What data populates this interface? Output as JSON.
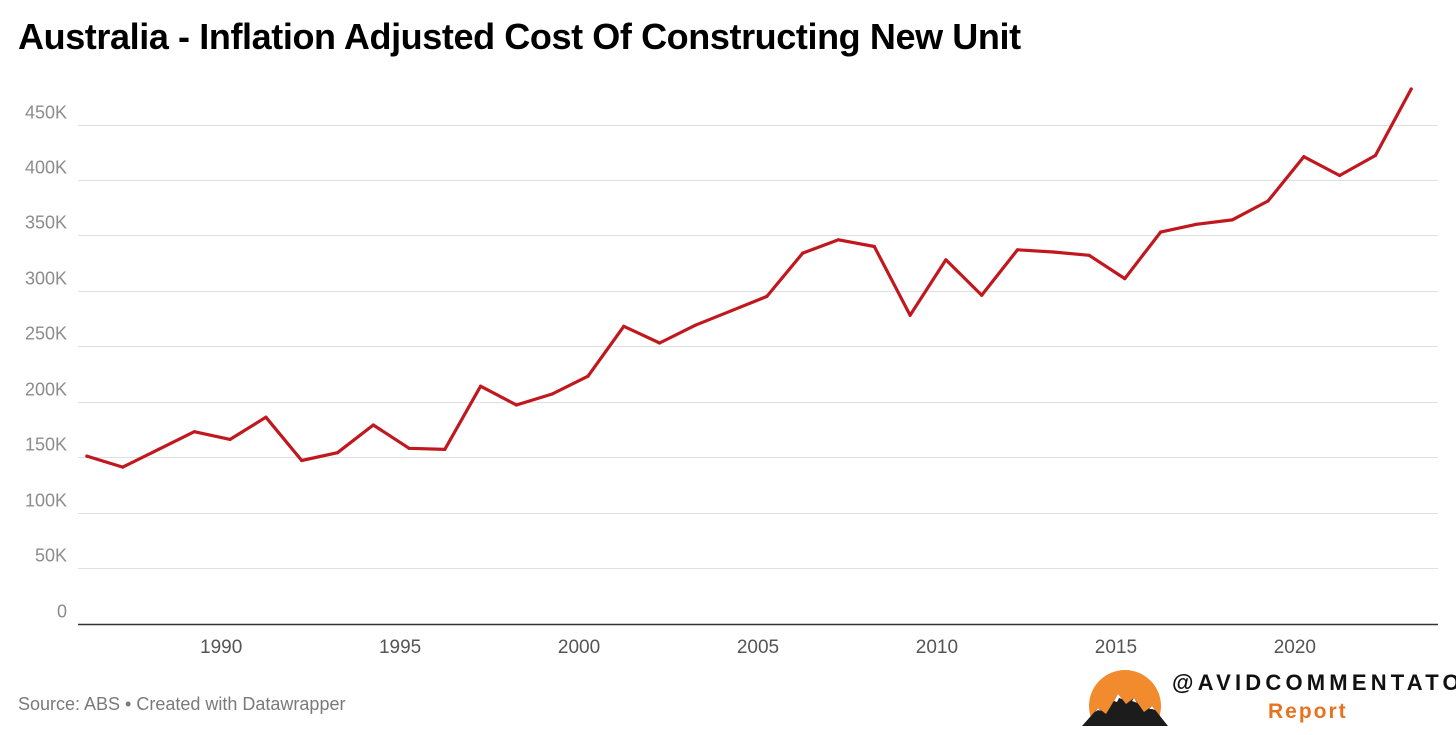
{
  "chart_data": {
    "type": "line",
    "title": "Australia - Inflation Adjusted Cost Of Constructing New Unit",
    "xlabel": "",
    "ylabel": "",
    "xlim": [
      1986,
      2024
    ],
    "ylim": [
      0,
      450000
    ],
    "x_ticks": [
      {
        "value": 1990,
        "label": "1990"
      },
      {
        "value": 1995,
        "label": "1995"
      },
      {
        "value": 2000,
        "label": "2000"
      },
      {
        "value": 2005,
        "label": "2005"
      },
      {
        "value": 2010,
        "label": "2010"
      },
      {
        "value": 2015,
        "label": "2015"
      },
      {
        "value": 2020,
        "label": "2020"
      }
    ],
    "y_ticks": [
      {
        "value": 0,
        "label": "0"
      },
      {
        "value": 50000,
        "label": "50K"
      },
      {
        "value": 100000,
        "label": "100K"
      },
      {
        "value": 150000,
        "label": "150K"
      },
      {
        "value": 200000,
        "label": "200K"
      },
      {
        "value": 250000,
        "label": "250K"
      },
      {
        "value": 300000,
        "label": "300K"
      },
      {
        "value": 350000,
        "label": "350K"
      },
      {
        "value": 400000,
        "label": "400K"
      },
      {
        "value": 450000,
        "label": "450K"
      }
    ],
    "grid": true,
    "series": [
      {
        "name": "Inflation adjusted cost of constructing new unit",
        "color": "#c0181e",
        "x": [
          1986.25,
          1987.25,
          1988.25,
          1989.25,
          1990.25,
          1991.25,
          1992.25,
          1993.25,
          1994.25,
          1995.25,
          1996.25,
          1997.25,
          1998.25,
          1999.25,
          2000.25,
          2001.25,
          2002.25,
          2003.25,
          2004.25,
          2005.25,
          2006.25,
          2007.25,
          2008.25,
          2009.25,
          2010.25,
          2011.25,
          2012.25,
          2013.25,
          2014.25,
          2015.25,
          2016.25,
          2017.25,
          2018.25,
          2019.25,
          2020.25,
          2021.25,
          2022.25,
          2023.25
        ],
        "values": [
          151000,
          141000,
          157000,
          173000,
          166000,
          186000,
          147000,
          154000,
          179000,
          158000,
          157000,
          214000,
          197000,
          207000,
          223000,
          268000,
          253000,
          269000,
          282000,
          295000,
          334000,
          346000,
          340000,
          278000,
          328000,
          296000,
          337000,
          335000,
          332000,
          311000,
          353000,
          360000,
          364000,
          381000,
          421000,
          404000,
          422000,
          482000
        ]
      }
    ]
  },
  "footer": {
    "source": "Source: ABS • Created with Datawrapper"
  },
  "brand": {
    "handle": "@AVIDCOMMENTATOR",
    "sub": "Report",
    "sun_color": "#f28a2e",
    "text_color": "#e8731f"
  }
}
